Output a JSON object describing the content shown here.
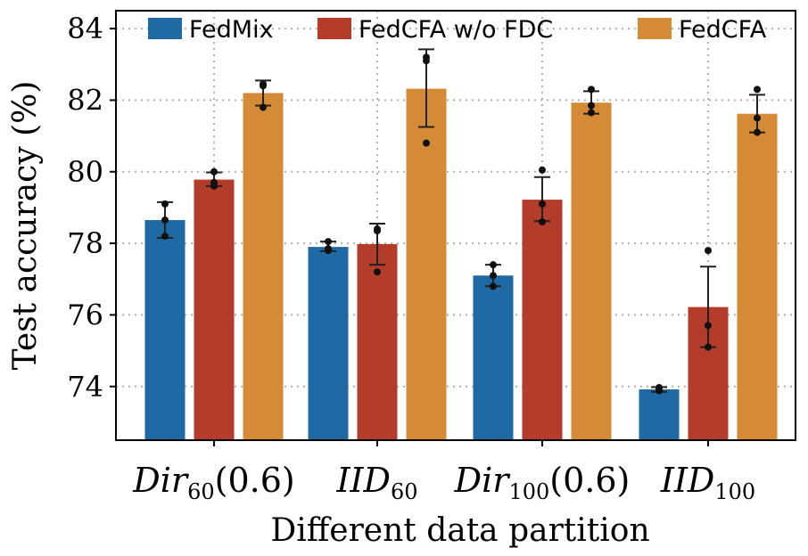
{
  "chart_data": {
    "type": "bar",
    "title": "",
    "xlabel": "Different data partition",
    "ylabel": "Test accuracy (%)",
    "ylim": [
      72.5,
      84.5
    ],
    "yticks": [
      74,
      76,
      78,
      80,
      82,
      84
    ],
    "grid": true,
    "legend_position": "top",
    "categories": [
      {
        "label": "Dir",
        "sub": "60",
        "suffix": "(0.6)"
      },
      {
        "label": "IID",
        "sub": "60",
        "suffix": ""
      },
      {
        "label": "Dir",
        "sub": "100",
        "suffix": "(0.6)"
      },
      {
        "label": "IID",
        "sub": "100",
        "suffix": ""
      }
    ],
    "series": [
      {
        "name": "FedMix",
        "color": "#1f6aa5",
        "values": [
          78.65,
          77.9,
          77.1,
          73.92
        ],
        "err_low": [
          78.15,
          77.78,
          76.8,
          73.85
        ],
        "err_high": [
          79.15,
          78.05,
          77.4,
          73.98
        ],
        "points": [
          [
            78.2,
            78.65,
            79.1
          ],
          [
            77.8,
            77.85,
            78.05
          ],
          [
            76.8,
            77.1,
            77.4
          ],
          [
            73.88,
            73.92,
            73.97
          ]
        ]
      },
      {
        "name": "FedCFA w/o FDC",
        "color": "#b43c2b",
        "values": [
          79.78,
          77.98,
          79.22,
          76.22
        ],
        "err_low": [
          79.6,
          77.4,
          78.62,
          75.1
        ],
        "err_high": [
          79.98,
          78.55,
          79.85,
          77.35
        ],
        "points": [
          [
            79.6,
            79.7,
            80.0
          ],
          [
            77.2,
            78.4,
            78.35
          ],
          [
            78.6,
            79.1,
            80.05
          ],
          [
            75.1,
            75.7,
            77.8
          ]
        ]
      },
      {
        "name": "FedCFA",
        "color": "#d58a35",
        "values": [
          82.2,
          82.32,
          81.93,
          81.62
        ],
        "err_low": [
          81.85,
          81.25,
          81.62,
          81.1
        ],
        "err_high": [
          82.55,
          83.42,
          82.25,
          82.15
        ],
        "points": [
          [
            81.8,
            82.4,
            82.45
          ],
          [
            80.8,
            83.1,
            83.2
          ],
          [
            81.65,
            81.85,
            82.3
          ],
          [
            81.1,
            81.5,
            82.3
          ]
        ]
      }
    ]
  }
}
